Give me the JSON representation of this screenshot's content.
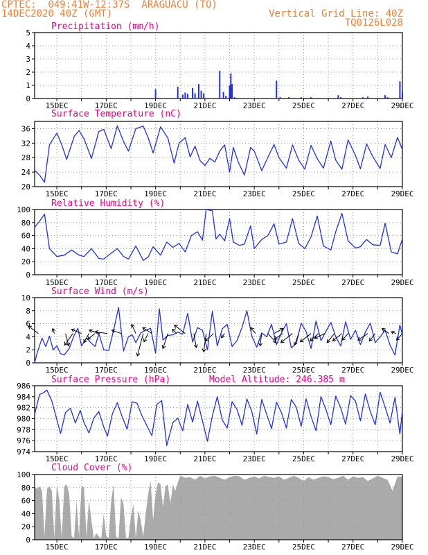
{
  "header": {
    "line1": "CPTEC:  049:41W-12:37S  ARAGUACU (TO)",
    "line2": "14DEC2020 40Z (GMT)",
    "right1": "Vertical Grid Line: 40Z",
    "right2": "TQ0126L028"
  },
  "x_tick_labels": [
    "15DEC",
    "17DEC",
    "19DEC",
    "21DEC",
    "23DEC",
    "25DEC",
    "27DEC",
    "29DEC"
  ],
  "colors": {
    "line": "#2030e0",
    "bar": "#2030e0",
    "cloud": "#aaaaaa",
    "title": "#e8008c",
    "header": "#f08030"
  },
  "chart_data": [
    {
      "type": "bar",
      "title": "Precipitation (mm/h)",
      "ylim": [
        0,
        5
      ],
      "yticks": [
        0,
        1,
        2,
        3,
        4,
        5
      ],
      "x_range_days": [
        14.1,
        29.0
      ],
      "series": [
        {
          "x": [
            19.0,
            19.9,
            20.1,
            20.2,
            20.3,
            20.5,
            20.6,
            20.75,
            20.85,
            20.95,
            21.6,
            21.75,
            21.85,
            22.0,
            22.05,
            22.1,
            22.2,
            23.9,
            24.05,
            24.4,
            24.6,
            24.9,
            25.1,
            25.3,
            25.6,
            26.4,
            26.5,
            27.4,
            27.6,
            28.3,
            28.4,
            28.9,
            29.0
          ],
          "values": [
            0.7,
            0.9,
            0.3,
            0.45,
            0.35,
            0.8,
            0.4,
            1.1,
            0.6,
            0.4,
            2.1,
            0.5,
            0.2,
            1.0,
            1.9,
            1.1,
            0.1,
            1.35,
            0.1,
            0.1,
            0.05,
            0.1,
            0.05,
            0.1,
            0.05,
            0.25,
            0.1,
            0.1,
            0.15,
            0.25,
            0.1,
            1.3,
            0.5
          ]
        }
      ]
    },
    {
      "type": "line",
      "title": "Surface Temperature (nC)",
      "ylim": [
        20,
        38
      ],
      "yticks": [
        20,
        24,
        28,
        32,
        36
      ],
      "series": [
        {
          "x": [
            14.1,
            14.3,
            14.5,
            14.7,
            15.0,
            15.2,
            15.4,
            15.7,
            15.9,
            16.1,
            16.4,
            16.7,
            16.9,
            17.2,
            17.45,
            17.7,
            17.9,
            18.2,
            18.5,
            18.7,
            18.9,
            19.2,
            19.5,
            19.75,
            19.95,
            20.2,
            20.4,
            20.6,
            20.8,
            21.0,
            21.2,
            21.4,
            21.6,
            21.8,
            22.0,
            22.15,
            22.35,
            22.6,
            22.85,
            23.0,
            23.3,
            23.6,
            23.8,
            24.0,
            24.3,
            24.55,
            24.8,
            25.05,
            25.3,
            25.55,
            25.8,
            26.1,
            26.3,
            26.55,
            26.8,
            27.1,
            27.3,
            27.55,
            27.8,
            28.1,
            28.3,
            28.55,
            28.8,
            29.0
          ],
          "values": [
            24.5,
            23.2,
            21.2,
            31.5,
            34.8,
            31.5,
            27.5,
            33.8,
            35.5,
            33.2,
            27.8,
            35.2,
            35.8,
            30.5,
            36.8,
            32.5,
            29.8,
            36.0,
            36.7,
            33.5,
            29.3,
            36.5,
            33.4,
            26.5,
            32.0,
            33.5,
            28.2,
            31.2,
            27.2,
            25.8,
            27.8,
            26.8,
            29.8,
            31.5,
            24.0,
            30.8,
            26.8,
            23.2,
            30.8,
            29.8,
            24.4,
            28.8,
            31.6,
            28.0,
            25.1,
            31.5,
            27.3,
            24.8,
            31.4,
            27.7,
            25.1,
            32.6,
            27.3,
            24.8,
            32.9,
            28.6,
            24.9,
            31.8,
            28.3,
            25.0,
            31.6,
            28.0,
            33.6,
            30.2
          ]
        }
      ]
    },
    {
      "type": "line",
      "title": "Relative Humidity (%)",
      "ylim": [
        0,
        100
      ],
      "yticks": [
        0,
        20,
        40,
        60,
        80,
        100
      ],
      "series": [
        {
          "x": [
            14.1,
            14.3,
            14.5,
            14.7,
            15.0,
            15.3,
            15.6,
            15.9,
            16.1,
            16.4,
            16.7,
            16.9,
            17.2,
            17.45,
            17.7,
            17.9,
            18.2,
            18.5,
            18.7,
            18.9,
            19.2,
            19.45,
            19.7,
            19.95,
            20.2,
            20.45,
            20.7,
            20.9,
            21.05,
            21.3,
            21.45,
            21.6,
            21.8,
            22.0,
            22.15,
            22.4,
            22.6,
            22.85,
            23.0,
            23.3,
            23.55,
            23.8,
            24.0,
            24.3,
            24.55,
            24.8,
            25.05,
            25.3,
            25.55,
            25.8,
            26.1,
            26.3,
            26.55,
            26.8,
            27.1,
            27.3,
            27.55,
            27.8,
            28.1,
            28.3,
            28.55,
            28.8,
            29.0
          ],
          "values": [
            73,
            82,
            93,
            40,
            28,
            30,
            38,
            30,
            28,
            40,
            25,
            24,
            33,
            40,
            28,
            24,
            44,
            22,
            27,
            43,
            30,
            50,
            42,
            48,
            35,
            60,
            66,
            53,
            100,
            98,
            55,
            62,
            52,
            86,
            50,
            45,
            47,
            75,
            40,
            54,
            60,
            78,
            47,
            50,
            86,
            48,
            40,
            58,
            90,
            44,
            38,
            66,
            94,
            52,
            41,
            43,
            54,
            46,
            45,
            79,
            35,
            32,
            55
          ]
        }
      ]
    },
    {
      "type": "line",
      "title": "Surface Wind (m/s)",
      "ylim": [
        0,
        10
      ],
      "yticks": [
        0,
        2,
        4,
        6,
        8,
        10
      ],
      "series": [
        {
          "x": [
            14.1,
            14.2,
            14.4,
            14.55,
            14.7,
            14.85,
            15.0,
            15.15,
            15.3,
            15.5,
            15.7,
            15.85,
            16.0,
            16.2,
            16.4,
            16.55,
            16.7,
            16.9,
            17.1,
            17.3,
            17.5,
            17.7,
            17.9,
            18.05,
            18.2,
            18.4,
            18.6,
            18.8,
            19.0,
            19.15,
            19.3,
            19.5,
            19.7,
            19.9,
            20.1,
            20.3,
            20.5,
            20.7,
            20.9,
            21.1,
            21.3,
            21.5,
            21.7,
            21.9,
            22.1,
            22.3,
            22.5,
            22.7,
            22.9,
            23.1,
            23.3,
            23.5,
            23.7,
            23.9,
            24.1,
            24.3,
            24.5,
            24.7,
            24.9,
            25.1,
            25.3,
            25.5,
            25.7,
            25.9,
            26.1,
            26.3,
            26.5,
            26.7,
            26.9,
            27.1,
            27.3,
            27.5,
            27.7,
            27.9,
            28.1,
            28.3,
            28.5,
            28.7,
            28.9,
            29.0
          ],
          "values": [
            0,
            1.5,
            3.8,
            2.5,
            4.1,
            2.0,
            2.6,
            1.4,
            1.2,
            2.2,
            4.2,
            5.3,
            2.6,
            3.8,
            3.0,
            2.5,
            4.5,
            2.0,
            1.9,
            5.0,
            8.5,
            1.8,
            4.0,
            4.3,
            3.1,
            4.6,
            5.0,
            5.3,
            1.5,
            8.3,
            3.5,
            4.2,
            4.3,
            4.7,
            4.4,
            7.6,
            3.2,
            5.4,
            5.0,
            2.0,
            7.9,
            2.6,
            5.2,
            5.9,
            2.5,
            3.4,
            5.4,
            8.0,
            4.1,
            2.4,
            4.6,
            4.0,
            5.9,
            2.8,
            4.6,
            6.0,
            2.3,
            3.0,
            6.1,
            4.8,
            2.2,
            6.4,
            3.4,
            4.8,
            6.2,
            4.0,
            2.6,
            6.3,
            3.6,
            5.0,
            2.8,
            4.7,
            6.1,
            3.1,
            4.0,
            5.0,
            2.7,
            1.2,
            5.8,
            4.3
          ]
        }
      ],
      "wind_vectors": {
        "x": [
          14.25,
          14.9,
          15.35,
          15.65,
          16.0,
          16.3,
          16.55,
          16.75,
          17.05,
          17.6,
          18.2,
          18.5,
          18.7,
          18.85,
          19.5,
          19.85,
          20.2,
          20.55,
          21.05,
          21.35,
          21.8,
          23.05,
          23.3,
          23.55,
          23.8,
          24.15,
          24.55,
          24.8,
          25.3,
          25.6,
          25.85,
          26.25,
          26.55,
          26.8,
          27.6,
          27.9,
          28.45,
          28.75,
          29.0
        ],
        "u": [
          -1.2,
          -0.2,
          0.4,
          -1.0,
          -1.2,
          -0.6,
          -0.9,
          -1.3,
          -1.5,
          -1.1,
          -0.5,
          -0.7,
          -0.5,
          -1.1,
          -0.6,
          -0.5,
          -1.3,
          0.3,
          -0.3,
          -1.0,
          -0.4,
          -0.6,
          -0.2,
          1.0,
          1.1,
          -1.0,
          -1.4,
          -0.5,
          -1.3,
          -1.0,
          -1.2,
          -0.9,
          -1.1,
          -0.7,
          -1.2,
          -0.7,
          -0.8,
          -0.6,
          -0.7
        ],
        "v": [
          0.9,
          0.6,
          -1.5,
          -1.4,
          0.5,
          -1.1,
          -0.7,
          0.4,
          0.2,
          0.4,
          1.1,
          -2.7,
          -1.0,
          0.7,
          -1.8,
          0.5,
          1.0,
          -1.7,
          -2.2,
          -0.9,
          -0.5,
          0.7,
          -1.5,
          -1.1,
          0.6,
          -0.7,
          -1.1,
          -1.4,
          -1.0,
          -0.9,
          -0.6,
          -1.1,
          -0.9,
          -0.8,
          -0.8,
          -0.9,
          0.6,
          0.2,
          -0.8
        ]
      }
    },
    {
      "type": "line",
      "title": "Surface Pressure (hPa)",
      "annotation": "Model Altitude: 246.385 m",
      "ylim": [
        974,
        986
      ],
      "yticks": [
        974,
        976,
        978,
        980,
        982,
        984,
        986
      ],
      "series": [
        {
          "x": [
            14.1,
            14.3,
            14.45,
            14.6,
            14.8,
            15.0,
            15.15,
            15.35,
            15.55,
            15.75,
            15.95,
            16.1,
            16.3,
            16.5,
            16.7,
            16.9,
            17.05,
            17.25,
            17.45,
            17.65,
            17.85,
            18.05,
            18.25,
            18.45,
            18.65,
            18.85,
            19.05,
            19.25,
            19.45,
            19.7,
            19.9,
            20.1,
            20.3,
            20.5,
            20.7,
            20.9,
            21.1,
            21.3,
            21.5,
            21.7,
            21.9,
            22.1,
            22.3,
            22.5,
            22.7,
            22.9,
            23.1,
            23.3,
            23.5,
            23.7,
            23.9,
            24.1,
            24.3,
            24.5,
            24.7,
            24.9,
            25.1,
            25.3,
            25.5,
            25.7,
            25.9,
            26.1,
            26.3,
            26.5,
            26.7,
            26.9,
            27.1,
            27.3,
            27.5,
            27.7,
            27.9,
            28.1,
            28.3,
            28.5,
            28.7,
            28.9,
            29.0
          ],
          "values": [
            980.8,
            984.4,
            984.7,
            985.2,
            983.2,
            979.8,
            977.3,
            981.1,
            981.9,
            979.2,
            981.5,
            979.3,
            977.4,
            980.1,
            981.3,
            978.5,
            976.8,
            980.9,
            982.9,
            980.3,
            978.1,
            983.1,
            982.8,
            980.5,
            978.7,
            976.9,
            982.6,
            983.3,
            975.1,
            979.3,
            980.1,
            977.8,
            982.6,
            979.4,
            983.2,
            979.6,
            975.9,
            980.5,
            984.0,
            979.8,
            978.3,
            983.1,
            981.7,
            978.8,
            983.6,
            981.3,
            977.2,
            983.5,
            980.8,
            978.2,
            983.0,
            981.1,
            978.3,
            983.5,
            982.1,
            978.6,
            983.6,
            980.4,
            977.8,
            984.0,
            981.7,
            978.9,
            984.1,
            982.0,
            979.0,
            984.2,
            983.2,
            979.6,
            984.5,
            981.3,
            978.9,
            984.8,
            982.1,
            979.2,
            983.9,
            977.2,
            981.4
          ]
        }
      ]
    },
    {
      "type": "area",
      "title": "Cloud Cover (%)",
      "ylim": [
        0,
        100
      ],
      "yticks": [
        0,
        20,
        40,
        60,
        80,
        100
      ],
      "series": [
        {
          "x": [
            14.1,
            14.2,
            14.3,
            14.4,
            14.5,
            14.6,
            14.7,
            14.8,
            14.9,
            15.0,
            15.1,
            15.2,
            15.3,
            15.4,
            15.5,
            15.6,
            15.7,
            15.8,
            15.9,
            16.0,
            16.1,
            16.2,
            16.3,
            16.4,
            16.5,
            16.6,
            16.7,
            16.8,
            16.9,
            17.0,
            17.1,
            17.2,
            17.3,
            17.4,
            17.5,
            17.6,
            17.7,
            17.8,
            17.9,
            18.0,
            18.1,
            18.2,
            18.3,
            18.4,
            18.5,
            18.6,
            18.7,
            18.8,
            18.9,
            19.0,
            19.1,
            19.2,
            19.3,
            19.4,
            19.5,
            19.6,
            19.7,
            19.8,
            19.9,
            20.0,
            20.2,
            20.4,
            20.6,
            20.8,
            21.0,
            21.2,
            21.4,
            21.6,
            21.8,
            22.0,
            22.2,
            22.4,
            22.6,
            22.8,
            23.0,
            23.2,
            23.4,
            23.6,
            23.8,
            24.0,
            24.2,
            24.4,
            24.6,
            24.8,
            25.0,
            25.2,
            25.4,
            25.6,
            25.8,
            26.0,
            26.2,
            26.4,
            26.6,
            26.8,
            27.0,
            27.2,
            27.4,
            27.6,
            27.8,
            28.0,
            28.2,
            28.4,
            28.6,
            28.8,
            29.0
          ],
          "values": [
            80,
            78,
            82,
            75,
            5,
            78,
            82,
            75,
            3,
            85,
            60,
            3,
            82,
            85,
            70,
            5,
            3,
            60,
            5,
            83,
            80,
            5,
            60,
            30,
            2,
            10,
            5,
            2,
            40,
            5,
            3,
            60,
            85,
            5,
            2,
            65,
            55,
            3,
            3,
            35,
            55,
            2,
            45,
            30,
            5,
            40,
            70,
            90,
            30,
            70,
            88,
            85,
            50,
            82,
            85,
            55,
            85,
            75,
            88,
            98,
            95,
            96,
            92,
            98,
            94,
            97,
            98,
            95,
            92,
            96,
            98,
            97,
            92,
            95,
            97,
            94,
            98,
            96,
            95,
            97,
            92,
            95,
            98,
            95,
            90,
            96,
            92,
            95,
            97,
            96,
            93,
            95,
            98,
            92,
            97,
            95,
            96,
            90,
            94,
            98,
            95,
            92,
            75,
            97,
            96
          ]
        }
      ]
    }
  ]
}
